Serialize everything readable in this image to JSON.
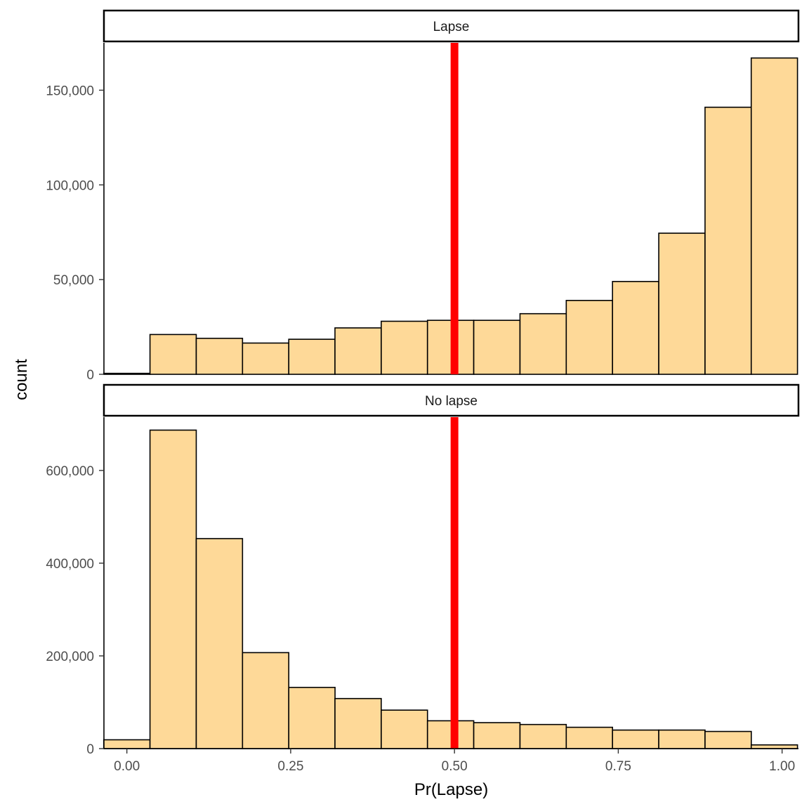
{
  "chart_data": {
    "type": "bar",
    "subtype": "faceted-histogram",
    "xlabel": "Pr(Lapse)",
    "ylabel": "count",
    "xlim": [
      -0.035,
      1.025
    ],
    "x_ticks": [
      0.0,
      0.25,
      0.5,
      0.75,
      1.0
    ],
    "x_tick_labels": [
      "0.00",
      "0.25",
      "0.50",
      "0.75",
      "1.00"
    ],
    "bin_width": 0.0706,
    "bin_starts": [
      -0.0353,
      0.0353,
      0.1059,
      0.1765,
      0.2471,
      0.3176,
      0.3882,
      0.4588,
      0.5294,
      0.6,
      0.6706,
      0.7412,
      0.8118,
      0.8824,
      0.9529
    ],
    "threshold": {
      "x": 0.5,
      "color": "#ff0000"
    },
    "fill_color": "#fed998",
    "outline_color": "#000000",
    "legend": "none",
    "grid": false,
    "facets": [
      {
        "label": "Lapse",
        "ylim": [
          0,
          175000
        ],
        "y_ticks": [
          0,
          50000,
          100000,
          150000
        ],
        "y_tick_labels": [
          "0",
          "50,000",
          "100,000",
          "150,000"
        ],
        "values": [
          500,
          21000,
          19000,
          16500,
          18500,
          24500,
          28000,
          28500,
          28500,
          32000,
          39000,
          49000,
          74500,
          141000,
          167000
        ]
      },
      {
        "label": "No lapse",
        "ylim": [
          0,
          715000
        ],
        "y_ticks": [
          0,
          200000,
          400000,
          600000
        ],
        "y_tick_labels": [
          "0",
          "200,000",
          "400,000",
          "600,000"
        ],
        "values": [
          19000,
          687000,
          453000,
          207000,
          132000,
          108000,
          83000,
          60000,
          56000,
          52000,
          46000,
          40000,
          40000,
          37000,
          8000
        ]
      }
    ]
  }
}
